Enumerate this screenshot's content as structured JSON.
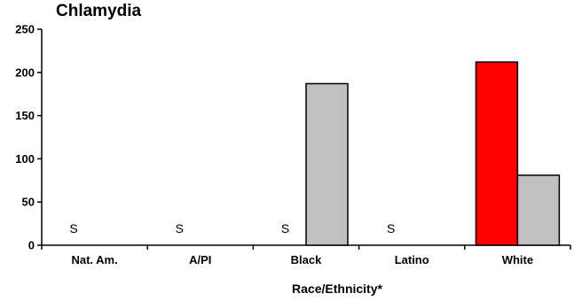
{
  "chart_data": {
    "type": "bar",
    "title": "Chlamydia",
    "xlabel": "Race/Ethnicity*",
    "ylabel": "",
    "ylim": [
      0,
      250
    ],
    "yticks": [
      "0",
      "50",
      "100",
      "150",
      "200",
      "250"
    ],
    "categories": [
      "Nat. Am.",
      "A/PI",
      "Black",
      "Latino",
      "White"
    ],
    "series": [
      {
        "color": "#ff0000",
        "values": [
          null,
          null,
          null,
          null,
          212
        ]
      },
      {
        "color": "#c0c0c0",
        "values": [
          null,
          null,
          187,
          null,
          81
        ]
      }
    ],
    "suppressed_marker": "S",
    "suppressed_categories": [
      "Nat. Am.",
      "A/PI",
      "Black",
      "Latino"
    ],
    "grid": false,
    "legend": "none"
  }
}
